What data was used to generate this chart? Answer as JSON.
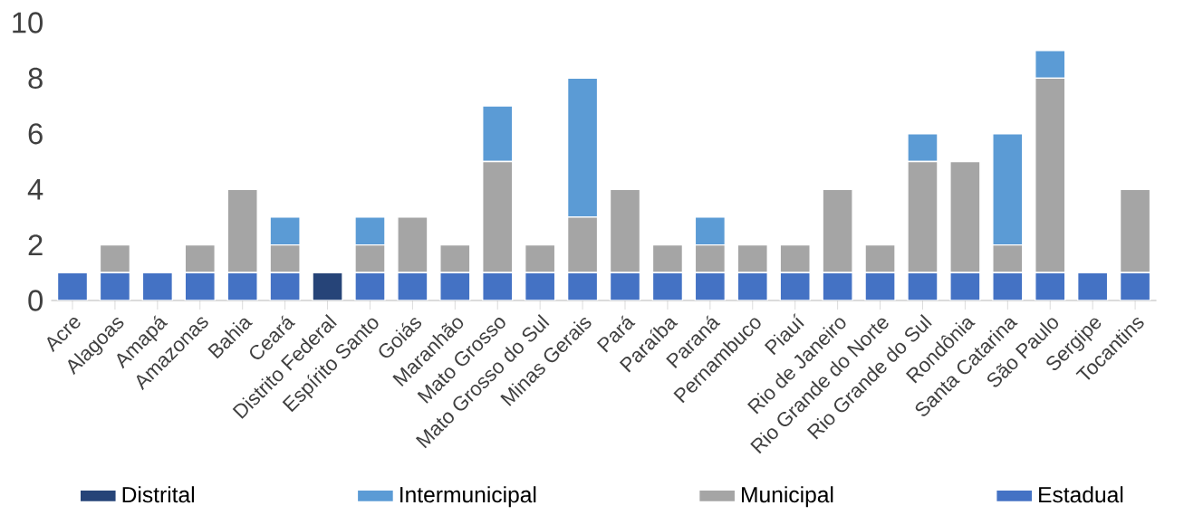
{
  "chart_data": {
    "type": "bar",
    "stacked": true,
    "legend": "bottom",
    "categories": [
      "Acre",
      "Alagoas",
      "Amapá",
      "Amazonas",
      "Bahia",
      "Ceará",
      "Distrito Federal",
      "Espírito Santo",
      "Goiás",
      "Maranhão",
      "Mato Grosso",
      "Mato Grosso do Sul",
      "Minas Gerais",
      "Pará",
      "Paraíba",
      "Paraná",
      "Pernambuco",
      "Piauí",
      "Rio de Janeiro",
      "Rio Grande do Norte",
      "Rio Grande do Sul",
      "Rondônia",
      "Santa Catarina",
      "São Paulo",
      "Sergipe",
      "Tocantins"
    ],
    "series": [
      {
        "name": "Estadual",
        "color": "#4472c4",
        "values": [
          1,
          1,
          1,
          1,
          1,
          1,
          0,
          1,
          1,
          1,
          1,
          1,
          1,
          1,
          1,
          1,
          1,
          1,
          1,
          1,
          1,
          1,
          1,
          1,
          1,
          1
        ]
      },
      {
        "name": "Municipal",
        "color": "#a5a5a5",
        "values": [
          0,
          1,
          0,
          1,
          3,
          1,
          0,
          1,
          2,
          1,
          4,
          1,
          2,
          3,
          1,
          1,
          1,
          1,
          3,
          1,
          4,
          4,
          1,
          7,
          0,
          3
        ]
      },
      {
        "name": "Intermunicipal",
        "color": "#5b9bd5",
        "values": [
          0,
          0,
          0,
          0,
          0,
          1,
          0,
          1,
          0,
          0,
          2,
          0,
          5,
          0,
          0,
          1,
          0,
          0,
          0,
          0,
          1,
          0,
          4,
          1,
          0,
          0
        ]
      },
      {
        "name": "Distrital",
        "color": "#264478",
        "values": [
          0,
          0,
          0,
          0,
          0,
          0,
          1,
          0,
          0,
          0,
          0,
          0,
          0,
          0,
          0,
          0,
          0,
          0,
          0,
          0,
          0,
          0,
          0,
          0,
          0,
          0
        ]
      }
    ],
    "ylim": [
      0,
      10
    ],
    "yticks": [
      0,
      2,
      4,
      6,
      8,
      10
    ]
  }
}
